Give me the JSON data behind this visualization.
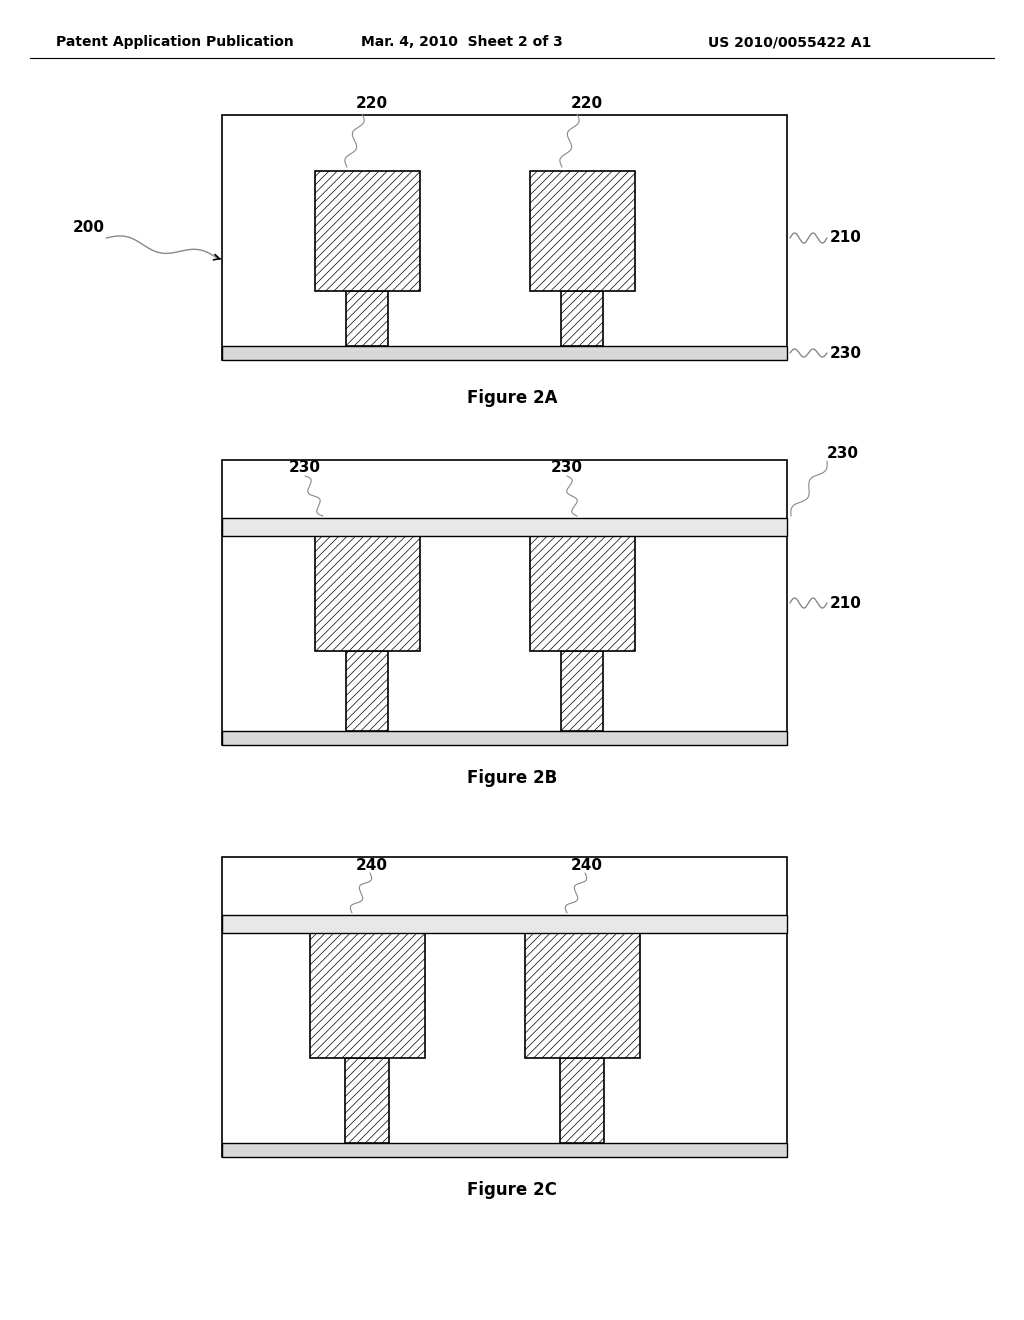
{
  "header_left": "Patent Application Publication",
  "header_mid": "Mar. 4, 2010  Sheet 2 of 3",
  "header_right": "US 2010/0055422 A1",
  "background": "#ffffff",
  "line_color": "#000000",
  "hatch_pattern": "////",
  "hatch_lw": 0.5
}
